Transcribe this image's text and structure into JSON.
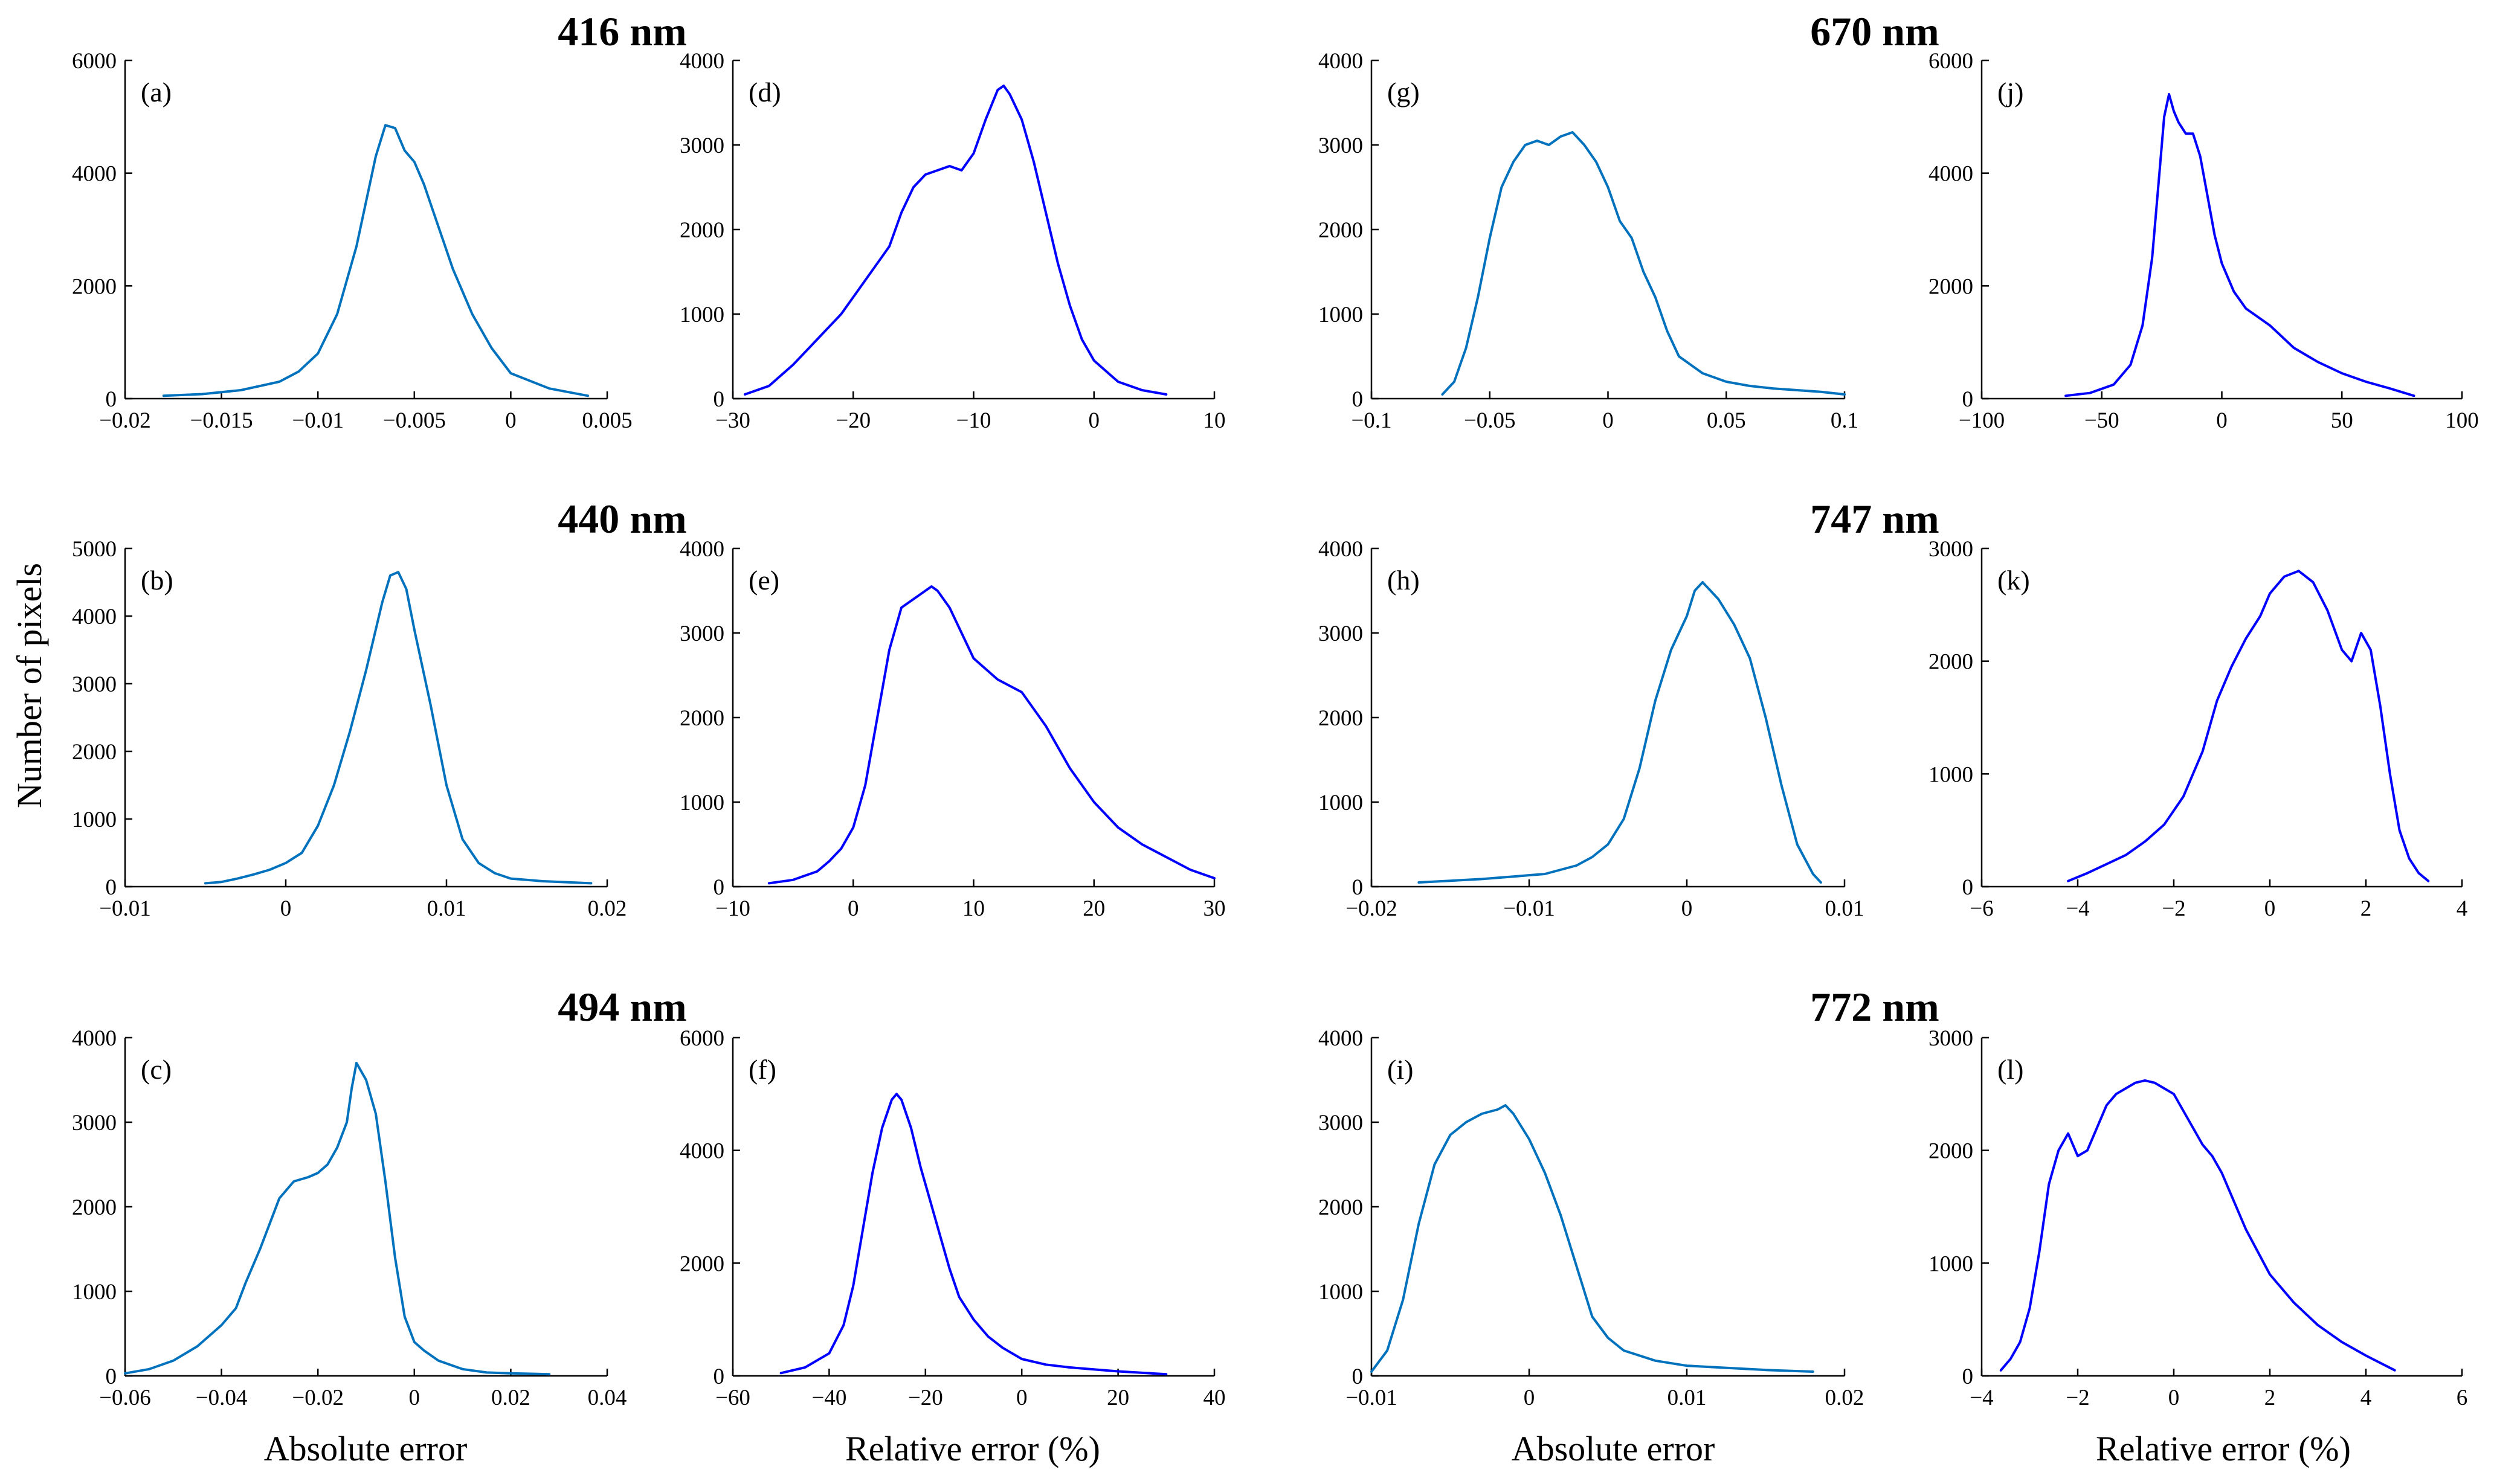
{
  "colors": {
    "absolute": "#0072BD",
    "relative": "#0000FF"
  },
  "labels": {
    "ylabel": "Number of pixels",
    "xlabel_abs": "Absolute error",
    "xlabel_rel": "Relative error (%)"
  },
  "wavelengths": [
    "416 nm",
    "440 nm",
    "494 nm",
    "670 nm",
    "747 nm",
    "772 nm"
  ],
  "chart_data": [
    {
      "id": "a",
      "type": "line",
      "letter": "(a)",
      "kind": "absolute",
      "xlim": [
        -0.02,
        0.005
      ],
      "xticks": [
        -0.02,
        -0.015,
        -0.01,
        -0.005,
        0,
        0.005
      ],
      "xtick_labels": [
        "−0.02",
        "−0.015",
        "−0.01",
        "−0.005",
        "0",
        "0.005"
      ],
      "ylim": [
        0,
        6000
      ],
      "yticks": [
        0,
        2000,
        4000,
        6000
      ],
      "ytick_labels": [
        "0",
        "2000",
        "4000",
        "6000"
      ],
      "x": [
        -0.018,
        -0.016,
        -0.014,
        -0.012,
        -0.011,
        -0.01,
        -0.009,
        -0.008,
        -0.0075,
        -0.007,
        -0.0065,
        -0.006,
        -0.0055,
        -0.005,
        -0.0045,
        -0.004,
        -0.0035,
        -0.003,
        -0.002,
        -0.001,
        0,
        0.002,
        0.004
      ],
      "y": [
        50,
        80,
        150,
        300,
        480,
        800,
        1500,
        2700,
        3500,
        4300,
        4850,
        4800,
        4400,
        4200,
        3800,
        3300,
        2800,
        2300,
        1500,
        900,
        450,
        180,
        50
      ]
    },
    {
      "id": "b",
      "type": "line",
      "letter": "(b)",
      "kind": "absolute",
      "xlim": [
        -0.01,
        0.02
      ],
      "xticks": [
        -0.01,
        0,
        0.01,
        0.02
      ],
      "xtick_labels": [
        "−0.01",
        "0",
        "0.01",
        "0.02"
      ],
      "ylim": [
        0,
        5000
      ],
      "yticks": [
        0,
        1000,
        2000,
        3000,
        4000,
        5000
      ],
      "ytick_labels": [
        "0",
        "1000",
        "2000",
        "3000",
        "4000",
        "5000"
      ],
      "x": [
        -0.005,
        -0.004,
        -0.003,
        -0.002,
        -0.001,
        0,
        0.001,
        0.002,
        0.003,
        0.004,
        0.005,
        0.006,
        0.0065,
        0.007,
        0.0075,
        0.008,
        0.009,
        0.01,
        0.011,
        0.012,
        0.013,
        0.014,
        0.016,
        0.019
      ],
      "y": [
        50,
        70,
        120,
        180,
        250,
        350,
        500,
        900,
        1500,
        2300,
        3200,
        4200,
        4600,
        4650,
        4400,
        3800,
        2700,
        1500,
        700,
        350,
        200,
        120,
        80,
        50
      ]
    },
    {
      "id": "c",
      "type": "line",
      "letter": "(c)",
      "kind": "absolute",
      "xlim": [
        -0.06,
        0.04
      ],
      "xticks": [
        -0.06,
        -0.04,
        -0.02,
        0,
        0.02,
        0.04
      ],
      "xtick_labels": [
        "−0.06",
        "−0.04",
        "−0.02",
        "0",
        "0.02",
        "0.04"
      ],
      "ylim": [
        0,
        4000
      ],
      "yticks": [
        0,
        1000,
        2000,
        3000,
        4000
      ],
      "ytick_labels": [
        "0",
        "1000",
        "2000",
        "3000",
        "4000"
      ],
      "x": [
        -0.06,
        -0.055,
        -0.05,
        -0.045,
        -0.04,
        -0.037,
        -0.035,
        -0.032,
        -0.03,
        -0.028,
        -0.025,
        -0.022,
        -0.02,
        -0.018,
        -0.016,
        -0.014,
        -0.013,
        -0.012,
        -0.011,
        -0.01,
        -0.008,
        -0.006,
        -0.004,
        -0.002,
        0,
        0.002,
        0.005,
        0.01,
        0.015,
        0.02,
        0.028
      ],
      "y": [
        30,
        80,
        180,
        350,
        600,
        800,
        1100,
        1500,
        1800,
        2100,
        2300,
        2350,
        2400,
        2500,
        2700,
        3000,
        3400,
        3700,
        3600,
        3500,
        3100,
        2300,
        1400,
        700,
        400,
        300,
        180,
        80,
        40,
        30,
        20
      ]
    },
    {
      "id": "d",
      "type": "line",
      "letter": "(d)",
      "kind": "relative",
      "xlim": [
        -30,
        10
      ],
      "xticks": [
        -30,
        -20,
        -10,
        0,
        10
      ],
      "xtick_labels": [
        "−30",
        "−20",
        "−10",
        "0",
        "10"
      ],
      "ylim": [
        0,
        4000
      ],
      "yticks": [
        0,
        1000,
        2000,
        3000,
        4000
      ],
      "ytick_labels": [
        "0",
        "1000",
        "2000",
        "3000",
        "4000"
      ],
      "x": [
        -29,
        -27,
        -25,
        -23,
        -21,
        -19,
        -17,
        -16,
        -15,
        -14,
        -13,
        -12,
        -11,
        -10,
        -9,
        -8,
        -7.5,
        -7,
        -6,
        -5,
        -4,
        -3,
        -2,
        -1,
        0,
        2,
        4,
        6
      ],
      "y": [
        50,
        150,
        400,
        700,
        1000,
        1400,
        1800,
        2200,
        2500,
        2650,
        2700,
        2750,
        2700,
        2900,
        3300,
        3650,
        3700,
        3600,
        3300,
        2800,
        2200,
        1600,
        1100,
        700,
        450,
        200,
        100,
        50
      ]
    },
    {
      "id": "e",
      "type": "line",
      "letter": "(e)",
      "kind": "relative",
      "xlim": [
        -10,
        30
      ],
      "xticks": [
        -10,
        0,
        10,
        20,
        30
      ],
      "xtick_labels": [
        "−10",
        "0",
        "10",
        "20",
        "30"
      ],
      "ylim": [
        0,
        4000
      ],
      "yticks": [
        0,
        1000,
        2000,
        3000,
        4000
      ],
      "ytick_labels": [
        "0",
        "1000",
        "2000",
        "3000",
        "4000"
      ],
      "x": [
        -7,
        -5,
        -3,
        -2,
        -1,
        0,
        1,
        2,
        3,
        4,
        5,
        6,
        6.5,
        7,
        8,
        9,
        10,
        12,
        14,
        16,
        18,
        20,
        22,
        24,
        26,
        28,
        30
      ],
      "y": [
        40,
        80,
        180,
        300,
        450,
        700,
        1200,
        2000,
        2800,
        3300,
        3400,
        3500,
        3550,
        3500,
        3300,
        3000,
        2700,
        2450,
        2300,
        1900,
        1400,
        1000,
        700,
        500,
        350,
        200,
        100
      ]
    },
    {
      "id": "f",
      "type": "line",
      "letter": "(f)",
      "kind": "relative",
      "xlim": [
        -60,
        40
      ],
      "xticks": [
        -60,
        -40,
        -20,
        0,
        20,
        40
      ],
      "xtick_labels": [
        "−60",
        "−40",
        "−20",
        "0",
        "20",
        "40"
      ],
      "ylim": [
        0,
        6000
      ],
      "yticks": [
        0,
        2000,
        4000,
        6000
      ],
      "ytick_labels": [
        "0",
        "2000",
        "4000",
        "6000"
      ],
      "x": [
        -50,
        -45,
        -40,
        -37,
        -35,
        -33,
        -31,
        -29,
        -27,
        -26,
        -25,
        -23,
        -21,
        -19,
        -17,
        -15,
        -13,
        -10,
        -7,
        -4,
        0,
        5,
        10,
        20,
        30
      ],
      "y": [
        50,
        150,
        400,
        900,
        1600,
        2600,
        3600,
        4400,
        4900,
        5000,
        4900,
        4400,
        3700,
        3100,
        2500,
        1900,
        1400,
        1000,
        700,
        500,
        300,
        200,
        150,
        80,
        30
      ]
    },
    {
      "id": "g",
      "type": "line",
      "letter": "(g)",
      "kind": "absolute",
      "xlim": [
        -0.1,
        0.1
      ],
      "xticks": [
        -0.1,
        -0.05,
        0,
        0.05,
        0.1
      ],
      "xtick_labels": [
        "−0.1",
        "−0.05",
        "0",
        "0.05",
        "0.1"
      ],
      "ylim": [
        0,
        4000
      ],
      "yticks": [
        0,
        1000,
        2000,
        3000,
        4000
      ],
      "ytick_labels": [
        "0",
        "1000",
        "2000",
        "3000",
        "4000"
      ],
      "x": [
        -0.07,
        -0.065,
        -0.06,
        -0.055,
        -0.05,
        -0.045,
        -0.04,
        -0.035,
        -0.03,
        -0.025,
        -0.02,
        -0.015,
        -0.01,
        -0.005,
        0,
        0.005,
        0.01,
        0.015,
        0.02,
        0.025,
        0.03,
        0.04,
        0.05,
        0.06,
        0.07,
        0.08,
        0.09,
        0.1
      ],
      "y": [
        50,
        200,
        600,
        1200,
        1900,
        2500,
        2800,
        3000,
        3050,
        3000,
        3100,
        3150,
        3000,
        2800,
        2500,
        2100,
        1900,
        1500,
        1200,
        800,
        500,
        300,
        200,
        150,
        120,
        100,
        80,
        50
      ]
    },
    {
      "id": "h",
      "type": "line",
      "letter": "(h)",
      "kind": "absolute",
      "xlim": [
        -0.02,
        0.01
      ],
      "xticks": [
        -0.02,
        -0.01,
        0,
        0.01
      ],
      "xtick_labels": [
        "−0.02",
        "−0.01",
        "0",
        "0.01"
      ],
      "ylim": [
        0,
        4000
      ],
      "yticks": [
        0,
        1000,
        2000,
        3000,
        4000
      ],
      "ytick_labels": [
        "0",
        "1000",
        "2000",
        "3000",
        "4000"
      ],
      "x": [
        -0.017,
        -0.015,
        -0.013,
        -0.011,
        -0.009,
        -0.007,
        -0.006,
        -0.005,
        -0.004,
        -0.003,
        -0.002,
        -0.001,
        0,
        0.0005,
        0.001,
        0.0015,
        0.002,
        0.003,
        0.004,
        0.005,
        0.006,
        0.007,
        0.008,
        0.0085
      ],
      "y": [
        50,
        70,
        90,
        120,
        150,
        250,
        350,
        500,
        800,
        1400,
        2200,
        2800,
        3200,
        3500,
        3600,
        3500,
        3400,
        3100,
        2700,
        2000,
        1200,
        500,
        150,
        50
      ]
    },
    {
      "id": "i",
      "type": "line",
      "letter": "(i)",
      "kind": "absolute",
      "xlim": [
        -0.01,
        0.02
      ],
      "xticks": [
        -0.01,
        0,
        0.01,
        0.02
      ],
      "xtick_labels": [
        "−0.01",
        "0",
        "0.01",
        "0.02"
      ],
      "ylim": [
        0,
        4000
      ],
      "yticks": [
        0,
        1000,
        2000,
        3000,
        4000
      ],
      "ytick_labels": [
        "0",
        "1000",
        "2000",
        "3000",
        "4000"
      ],
      "x": [
        -0.01,
        -0.009,
        -0.008,
        -0.007,
        -0.006,
        -0.005,
        -0.004,
        -0.003,
        -0.002,
        -0.0015,
        -0.001,
        0,
        0.001,
        0.002,
        0.003,
        0.004,
        0.005,
        0.006,
        0.008,
        0.01,
        0.012,
        0.015,
        0.018
      ],
      "y": [
        50,
        300,
        900,
        1800,
        2500,
        2850,
        3000,
        3100,
        3150,
        3200,
        3100,
        2800,
        2400,
        1900,
        1300,
        700,
        450,
        300,
        180,
        120,
        100,
        70,
        50
      ]
    },
    {
      "id": "j",
      "type": "line",
      "letter": "(j)",
      "kind": "relative",
      "xlim": [
        -100,
        100
      ],
      "xticks": [
        -100,
        -50,
        0,
        50,
        100
      ],
      "xtick_labels": [
        "−100",
        "−50",
        "0",
        "50",
        "100"
      ],
      "ylim": [
        0,
        6000
      ],
      "yticks": [
        0,
        2000,
        4000,
        6000
      ],
      "ytick_labels": [
        "0",
        "2000",
        "4000",
        "6000"
      ],
      "x": [
        -65,
        -55,
        -45,
        -38,
        -33,
        -29,
        -26,
        -24,
        -22,
        -20,
        -18,
        -15,
        -12,
        -9,
        -6,
        -3,
        0,
        5,
        10,
        20,
        30,
        40,
        50,
        60,
        70,
        80
      ],
      "y": [
        50,
        100,
        250,
        600,
        1300,
        2500,
        4000,
        5000,
        5400,
        5100,
        4900,
        4700,
        4700,
        4300,
        3600,
        2900,
        2400,
        1900,
        1600,
        1300,
        900,
        650,
        450,
        300,
        180,
        50
      ]
    },
    {
      "id": "k",
      "type": "line",
      "letter": "(k)",
      "kind": "relative",
      "xlim": [
        -6,
        4
      ],
      "xticks": [
        -6,
        -4,
        -2,
        0,
        2,
        4
      ],
      "xtick_labels": [
        "−6",
        "−4",
        "−2",
        "0",
        "2",
        "4"
      ],
      "ylim": [
        0,
        3000
      ],
      "yticks": [
        0,
        1000,
        2000,
        3000
      ],
      "ytick_labels": [
        "0",
        "1000",
        "2000",
        "3000"
      ],
      "x": [
        -4.2,
        -3.8,
        -3.4,
        -3,
        -2.6,
        -2.2,
        -1.8,
        -1.4,
        -1.1,
        -0.8,
        -0.5,
        -0.2,
        0,
        0.3,
        0.6,
        0.9,
        1.2,
        1.5,
        1.7,
        1.9,
        2.1,
        2.3,
        2.5,
        2.7,
        2.9,
        3.1,
        3.3
      ],
      "y": [
        50,
        120,
        200,
        280,
        400,
        550,
        800,
        1200,
        1650,
        1950,
        2200,
        2400,
        2600,
        2750,
        2800,
        2700,
        2450,
        2100,
        2000,
        2250,
        2100,
        1600,
        1000,
        500,
        250,
        120,
        50
      ]
    },
    {
      "id": "l",
      "type": "line",
      "letter": "(l)",
      "kind": "relative",
      "xlim": [
        -4,
        6
      ],
      "xticks": [
        -4,
        -2,
        0,
        2,
        4,
        6
      ],
      "xtick_labels": [
        "−4",
        "−2",
        "0",
        "2",
        "4",
        "6"
      ],
      "ylim": [
        0,
        3000
      ],
      "yticks": [
        0,
        1000,
        2000,
        3000
      ],
      "ytick_labels": [
        "0",
        "1000",
        "2000",
        "3000"
      ],
      "x": [
        -3.6,
        -3.4,
        -3.2,
        -3,
        -2.8,
        -2.6,
        -2.4,
        -2.2,
        -2,
        -1.8,
        -1.6,
        -1.4,
        -1.2,
        -1,
        -0.8,
        -0.6,
        -0.4,
        -0.2,
        0,
        0.2,
        0.4,
        0.6,
        0.8,
        1,
        1.2,
        1.5,
        2,
        2.5,
        3,
        3.5,
        4,
        4.6
      ],
      "y": [
        50,
        150,
        300,
        600,
        1100,
        1700,
        2000,
        2150,
        1950,
        2000,
        2200,
        2400,
        2500,
        2550,
        2600,
        2620,
        2600,
        2550,
        2500,
        2350,
        2200,
        2050,
        1950,
        1800,
        1600,
        1300,
        900,
        650,
        450,
        300,
        180,
        50
      ]
    }
  ]
}
